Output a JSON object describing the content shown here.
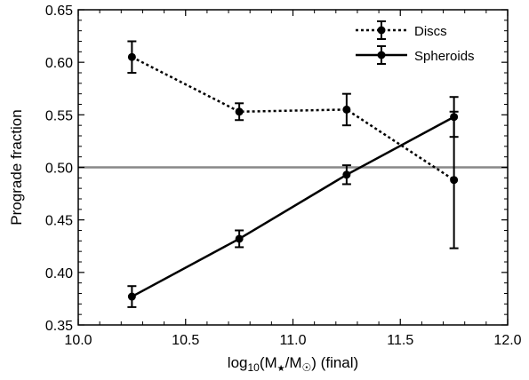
{
  "chart_data": {
    "type": "line",
    "xlabel": "log10(M★/M☉) (final)",
    "xlabel_parts": {
      "prefix": "log",
      "sub10": "10",
      "open": "(M",
      "star": "★",
      "slash": "/M",
      "sun": "☉",
      "close": ") (final)"
    },
    "ylabel": "Prograde fraction",
    "xlim": [
      10.0,
      12.0
    ],
    "ylim": [
      0.35,
      0.65
    ],
    "xticks": [
      "10.0",
      "10.5",
      "11.0",
      "11.5",
      "12.0"
    ],
    "yticks": [
      "0.35",
      "0.40",
      "0.45",
      "0.50",
      "0.55",
      "0.60",
      "0.65"
    ],
    "reference_line": {
      "y": 0.5,
      "color": "#888888"
    },
    "legend_position": "top-right",
    "series": [
      {
        "name": "Discs",
        "style": "dotted",
        "color": "#000000",
        "x": [
          10.25,
          10.75,
          11.25,
          11.75
        ],
        "y": [
          0.605,
          0.553,
          0.555,
          0.488
        ],
        "err": [
          0.015,
          0.008,
          0.015,
          0.065
        ]
      },
      {
        "name": "Spheroids",
        "style": "solid",
        "color": "#000000",
        "x": [
          10.25,
          10.75,
          11.25,
          11.75
        ],
        "y": [
          0.377,
          0.432,
          0.493,
          0.548
        ],
        "err": [
          0.01,
          0.008,
          0.009,
          0.019
        ]
      }
    ]
  }
}
